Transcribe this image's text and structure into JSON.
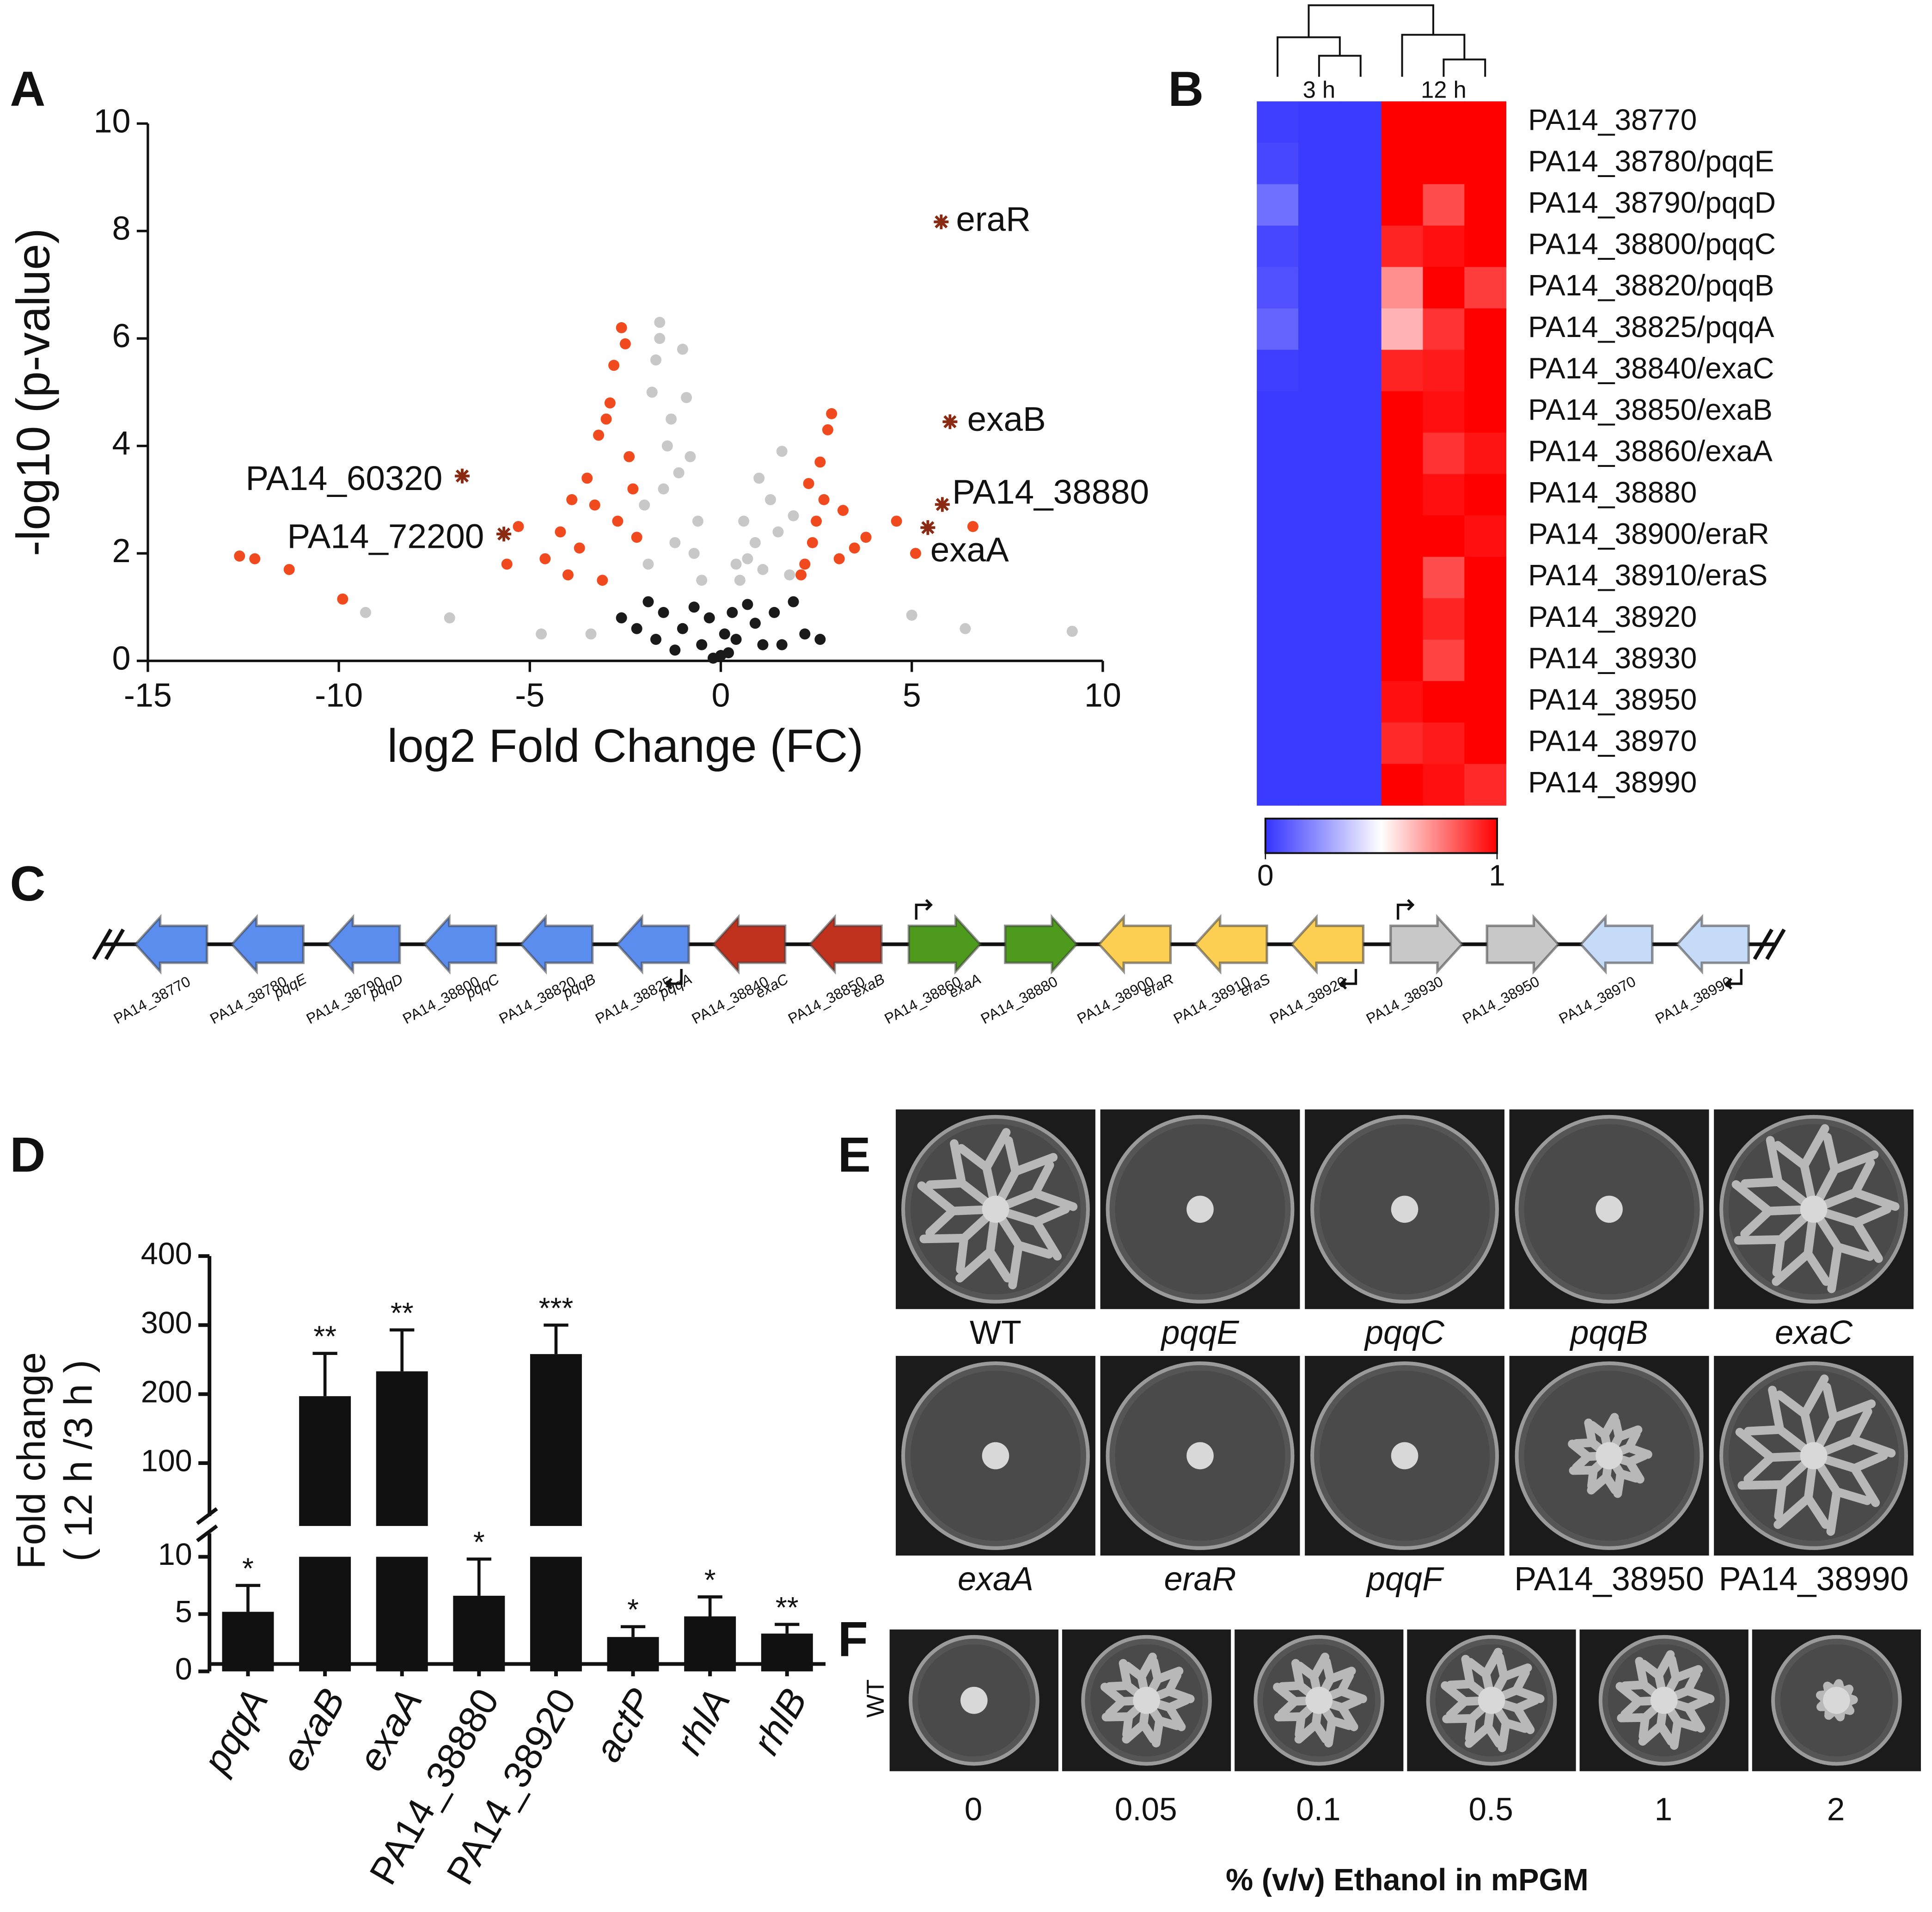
{
  "chart_data": [
    {
      "type": "scatter",
      "panel": "A",
      "xlabel": "log2 Fold Change (FC)",
      "ylabel": "-log10 (p-value)",
      "xlim": [
        -15,
        10
      ],
      "ylim": [
        0,
        10
      ],
      "xticks": [
        -15,
        -10,
        -5,
        0,
        5,
        10
      ],
      "yticks": [
        0,
        2,
        4,
        6,
        8,
        10
      ],
      "series": [
        {
          "color": "#c8c8c8",
          "marker": "circle",
          "x": [
            -9.3,
            -7.1,
            -4.7,
            -3.4,
            9.2,
            5.0,
            6.4,
            -1.6,
            -1.0,
            -1.8,
            -1.3,
            -0.8,
            -1.5,
            -0.6,
            -1.2,
            -1.9,
            -0.5,
            0.5,
            0.9,
            1.3,
            1.6,
            1.9,
            0.7,
            1.1,
            -1.7,
            -0.9,
            0.4,
            1.8,
            -1.4,
            -1.1,
            -2.0,
            1.5,
            1.0,
            -0.7,
            0.6,
            -1.6
          ],
          "values": [
            0.9,
            0.8,
            0.5,
            0.5,
            0.55,
            0.85,
            0.6,
            6.3,
            5.8,
            5.0,
            4.5,
            3.8,
            3.2,
            2.6,
            2.2,
            1.8,
            1.5,
            1.5,
            2.2,
            3.0,
            3.9,
            2.7,
            1.9,
            1.7,
            5.6,
            4.9,
            1.8,
            1.6,
            4.0,
            3.5,
            2.9,
            2.4,
            3.4,
            2.0,
            2.6,
            6.0
          ]
        },
        {
          "color": "#1a1a1a",
          "marker": "circle",
          "x": [
            -1.9,
            -1.5,
            -1.0,
            -0.5,
            0.0,
            0.4,
            0.9,
            1.4,
            1.9,
            2.2,
            -2.2,
            -0.2,
            0.2,
            -1.2,
            1.1,
            -0.7,
            0.7,
            2.6,
            -2.6,
            0.1,
            -1.7,
            1.6,
            -0.3,
            0.3
          ],
          "values": [
            1.1,
            0.9,
            0.6,
            0.3,
            0.1,
            0.4,
            0.7,
            0.9,
            1.1,
            0.5,
            0.6,
            0.05,
            0.15,
            0.2,
            0.3,
            1.0,
            1.05,
            0.4,
            0.8,
            0.5,
            0.4,
            0.3,
            0.8,
            0.9
          ]
        },
        {
          "color": "#f04a1e",
          "marker": "circle",
          "x": [
            -12.6,
            -12.2,
            -11.3,
            -9.9,
            -5.6,
            -5.3,
            -4.6,
            -4.2,
            -3.9,
            -3.5,
            -3.2,
            -3.0,
            -2.8,
            -2.6,
            -2.4,
            -2.2,
            -3.7,
            -3.3,
            -2.9,
            -2.5,
            -2.3,
            -4.0,
            -3.1,
            -2.7,
            2.1,
            2.4,
            2.6,
            2.9,
            3.2,
            3.5,
            2.3,
            2.8,
            3.1,
            2.5,
            4.6,
            5.1,
            6.6,
            3.8,
            2.2,
            2.7
          ],
          "values": [
            1.95,
            1.9,
            1.7,
            1.15,
            1.8,
            2.5,
            1.9,
            2.4,
            3.0,
            3.4,
            4.2,
            4.5,
            5.5,
            6.2,
            3.8,
            2.3,
            2.1,
            2.9,
            4.8,
            5.9,
            3.2,
            1.6,
            1.5,
            2.6,
            1.6,
            2.2,
            3.7,
            4.6,
            2.8,
            2.1,
            3.3,
            4.3,
            1.9,
            2.6,
            2.6,
            2.0,
            2.5,
            2.3,
            1.8,
            3.0
          ]
        },
        {
          "color": "#8b2a12",
          "marker": "star",
          "x": [
            5.77,
            6.0,
            5.8,
            5.42,
            -6.77,
            -5.68
          ],
          "values": [
            8.17,
            4.45,
            2.91,
            2.48,
            3.44,
            2.36
          ],
          "point_labels": [
            "eraR",
            "exaB",
            "PA14_38880",
            "exaA",
            "PA14_60320",
            "PA14_72200"
          ]
        }
      ]
    },
    {
      "type": "heatmap",
      "panel": "B",
      "column_groups": [
        "3 h",
        "12 h"
      ],
      "rows": [
        "PA14_38770",
        "PA14_38780/pqqE",
        "PA14_38790/pqqD",
        "PA14_38800/pqqC",
        "PA14_38820/pqqB",
        "PA14_38825/pqqA",
        "PA14_38840/exaC",
        "PA14_38850/exaB",
        "PA14_38860/exaA",
        "PA14_38880",
        "PA14_38900/eraR",
        "PA14_38910/eraS",
        "PA14_38920",
        "PA14_38930",
        "PA14_38950",
        "PA14_38970",
        "PA14_38990"
      ],
      "values": [
        [
          0.03,
          0.02,
          0.02,
          1,
          1,
          1
        ],
        [
          0.05,
          0.02,
          0.02,
          1,
          1,
          1
        ],
        [
          0.15,
          0.02,
          0.02,
          1,
          0.85,
          1
        ],
        [
          0.05,
          0.02,
          0.02,
          0.93,
          0.97,
          1
        ],
        [
          0.07,
          0.02,
          0.02,
          0.72,
          1,
          0.88
        ],
        [
          0.12,
          0.02,
          0.02,
          0.65,
          0.9,
          1
        ],
        [
          0.03,
          0.02,
          0.02,
          0.93,
          0.95,
          1
        ],
        [
          0.02,
          0.02,
          0.02,
          1,
          0.97,
          1
        ],
        [
          0.02,
          0.02,
          0.02,
          1,
          0.9,
          0.96
        ],
        [
          0.02,
          0.02,
          0.02,
          1,
          0.97,
          1
        ],
        [
          0.02,
          0.02,
          0.02,
          1,
          1,
          0.97
        ],
        [
          0.02,
          0.02,
          0.02,
          1,
          0.85,
          1
        ],
        [
          0.02,
          0.02,
          0.02,
          1,
          0.93,
          1
        ],
        [
          0.02,
          0.02,
          0.02,
          1,
          0.87,
          1
        ],
        [
          0.02,
          0.02,
          0.02,
          0.97,
          1,
          1
        ],
        [
          0.02,
          0.02,
          0.02,
          0.92,
          0.95,
          1
        ],
        [
          0.02,
          0.02,
          0.02,
          1,
          0.97,
          0.92
        ]
      ],
      "zlim": [
        0,
        1
      ],
      "zticks": [
        0,
        1
      ],
      "colors": [
        "#3333ff",
        "#ffffff",
        "#ff0000"
      ]
    },
    {
      "type": "bar",
      "panel": "D",
      "ylabel": [
        "Fold change",
        "( 12 h /3 h )"
      ],
      "categories": [
        "pqqA",
        "exaB",
        "exaA",
        "PA14_38880",
        "PA14_38920",
        "actP",
        "rhlA",
        "rhlB"
      ],
      "values": [
        5.2,
        197,
        233,
        6.6,
        258,
        3.0,
        4.8,
        3.3
      ],
      "errors": [
        2.3,
        62,
        60,
        3.2,
        42,
        0.9,
        1.7,
        0.8
      ],
      "significance": [
        "*",
        "**",
        "**",
        "*",
        "***",
        "*",
        "*",
        "**"
      ],
      "ylim": [
        0,
        400
      ],
      "axis_break": [
        10,
        100
      ],
      "yticks": [
        0,
        5,
        10,
        100,
        200,
        300,
        400
      ],
      "color": "#111111"
    }
  ],
  "gene_map": {
    "panel": "C",
    "genes": [
      {
        "locus": "PA14_38770",
        "name": null,
        "direction": "left",
        "color": "#5b8def"
      },
      {
        "locus": "PA14_38780",
        "name": "pqqE",
        "direction": "left",
        "color": "#5b8def"
      },
      {
        "locus": "PA14_38790",
        "name": "pqqD",
        "direction": "left",
        "color": "#5b8def"
      },
      {
        "locus": "PA14_38800",
        "name": "pqqC",
        "direction": "left",
        "color": "#5b8def"
      },
      {
        "locus": "PA14_38820",
        "name": "pqqB",
        "direction": "left",
        "color": "#5b8def"
      },
      {
        "locus": "PA14_38825",
        "name": "pqqA",
        "direction": "left",
        "color": "#5b8def"
      },
      {
        "locus": "PA14_38840",
        "name": "exaC",
        "direction": "left",
        "color": "#c0311d"
      },
      {
        "locus": "PA14_38850",
        "name": "exaB",
        "direction": "left",
        "color": "#c0311d"
      },
      {
        "locus": "PA14_38860",
        "name": "exaA",
        "direction": "right",
        "color": "#4d9a1c"
      },
      {
        "locus": "PA14_38880",
        "name": null,
        "direction": "right",
        "color": "#4d9a1c"
      },
      {
        "locus": "PA14_38900",
        "name": "eraR",
        "direction": "left",
        "color": "#fdd054"
      },
      {
        "locus": "PA14_38910",
        "name": "eraS",
        "direction": "left",
        "color": "#fdd054"
      },
      {
        "locus": "PA14_38920",
        "name": null,
        "direction": "left",
        "color": "#fdd054"
      },
      {
        "locus": "PA14_38930",
        "name": null,
        "direction": "right",
        "color": "#c8c8c8"
      },
      {
        "locus": "PA14_38950",
        "name": null,
        "direction": "right",
        "color": "#c8c8c8"
      },
      {
        "locus": "PA14_38970",
        "name": null,
        "direction": "left",
        "color": "#c6dbf7"
      },
      {
        "locus": "PA14_38990",
        "name": null,
        "direction": "left",
        "color": "#c6dbf7"
      }
    ]
  },
  "plates": {
    "panel_e": "E",
    "strains": [
      "WT",
      "pqqE",
      "pqqC",
      "pqqB",
      "exaC",
      "exaA",
      "eraR",
      "pqqF",
      "PA14_38950",
      "PA14_38990"
    ],
    "panel_f": "F",
    "row_label": "WT",
    "ethanol": [
      0,
      0.05,
      0.1,
      0.5,
      1,
      2
    ],
    "xlabel": "% (v/v) Ethanol in mPGM"
  }
}
